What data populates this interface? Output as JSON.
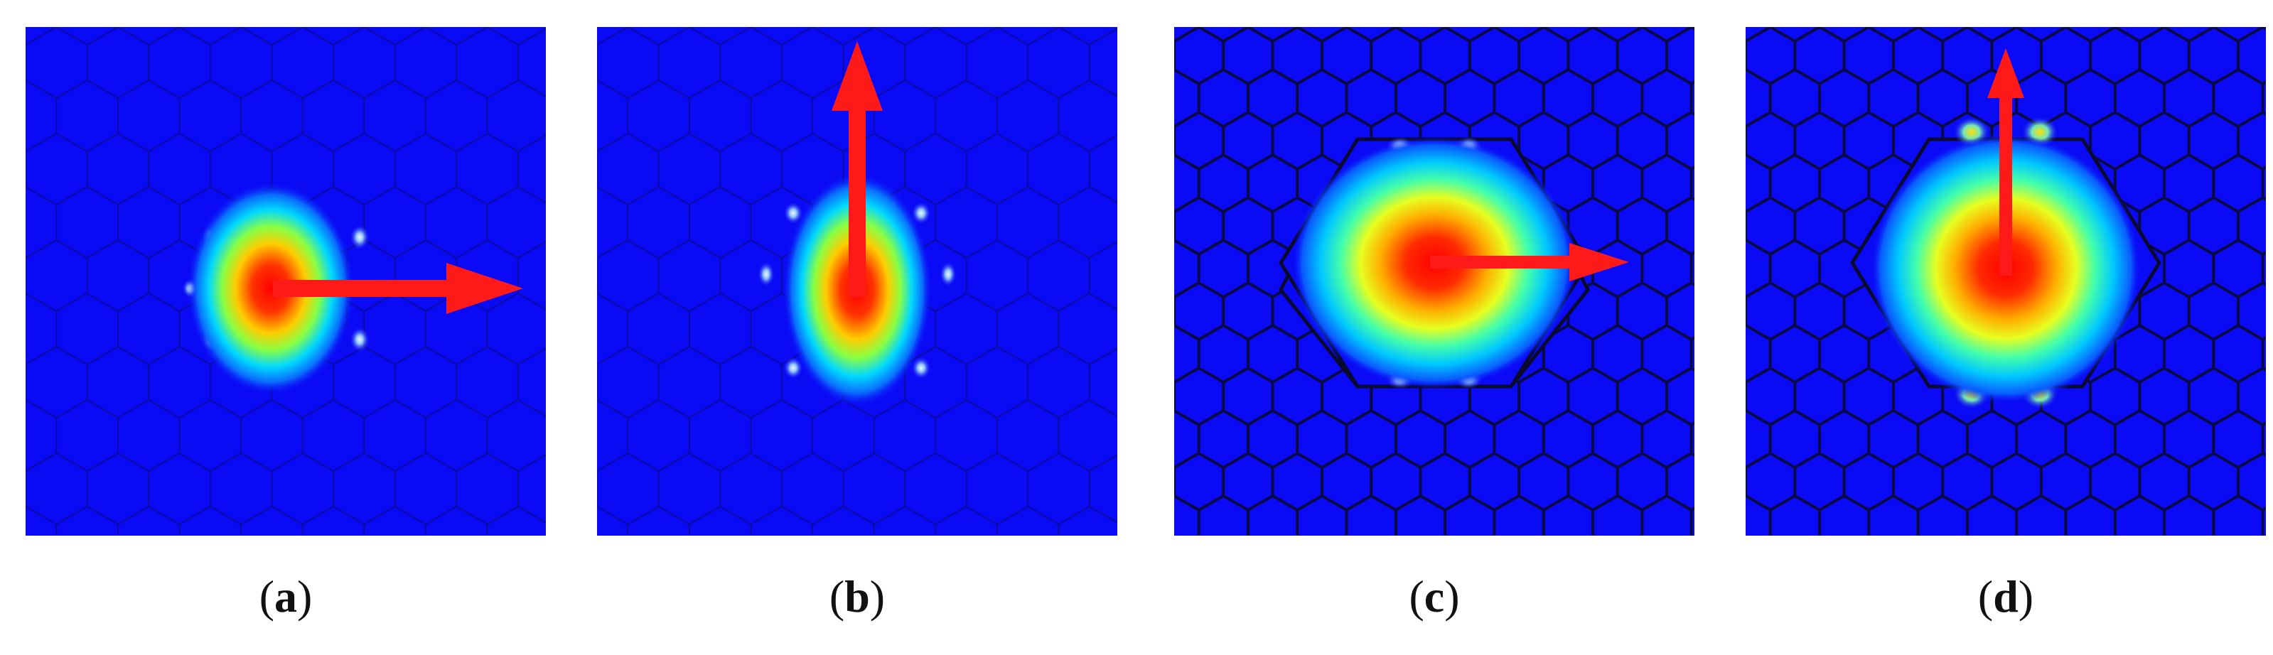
{
  "figure": {
    "colors": {
      "background": "#0a0af5",
      "lattice_line": "#0b0b5a",
      "arrow": "#ff1a1a",
      "colormap": [
        "#0000ff",
        "#00bfff",
        "#00ff7f",
        "#ffff00",
        "#ff8000",
        "#ff0000"
      ]
    },
    "panels": [
      {
        "id": "a",
        "open": "(",
        "letter": "a",
        "close": ")",
        "core": "small",
        "arrow_direction": "right"
      },
      {
        "id": "b",
        "open": "(",
        "letter": "b",
        "close": ")",
        "core": "small",
        "arrow_direction": "up"
      },
      {
        "id": "c",
        "open": "(",
        "letter": "c",
        "close": ")",
        "core": "large",
        "arrow_direction": "right"
      },
      {
        "id": "d",
        "open": "(",
        "letter": "d",
        "close": ")",
        "core": "large",
        "arrow_direction": "up"
      }
    ]
  }
}
